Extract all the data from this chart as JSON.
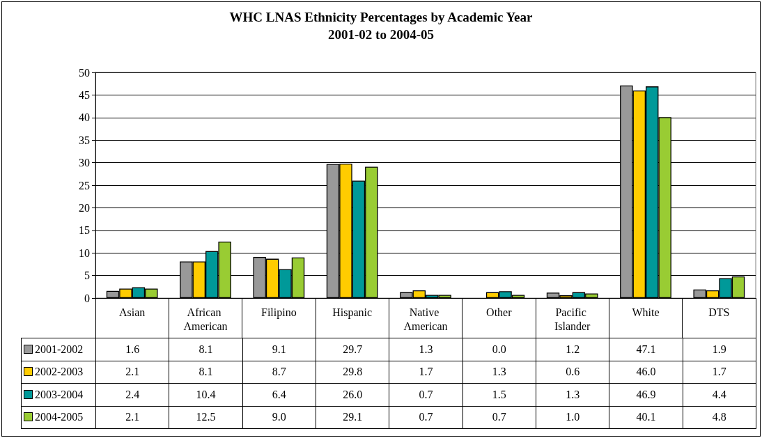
{
  "chart_data": {
    "type": "bar",
    "title": "WHC LNAS Ethnicity Percentages by Academic Year",
    "subtitle": "2001-02 to 2004-05",
    "categories": [
      "Asian",
      "African American",
      "Filipino",
      "Hispanic",
      "Native American",
      "Other",
      "Pacific Islander",
      "White",
      "DTS"
    ],
    "series": [
      {
        "name": "2001-2002",
        "color": "#999999",
        "values": [
          1.6,
          8.1,
          9.1,
          29.7,
          1.3,
          0.0,
          1.2,
          47.1,
          1.9
        ],
        "value_labels": [
          "1.6",
          "8.1",
          "9.1",
          "29.7",
          "1.3",
          "0.0",
          "1.2",
          "47.1",
          "1.9"
        ]
      },
      {
        "name": "2002-2003",
        "color": "#ffcc00",
        "values": [
          2.1,
          8.1,
          8.7,
          29.8,
          1.7,
          1.3,
          0.6,
          46.0,
          1.7
        ],
        "value_labels": [
          "2.1",
          "8.1",
          "8.7",
          "29.8",
          "1.7",
          "1.3",
          "0.6",
          "46.0",
          "1.7"
        ]
      },
      {
        "name": "2003-2004",
        "color": "#009999",
        "values": [
          2.4,
          10.4,
          6.4,
          26.0,
          0.7,
          1.5,
          1.3,
          46.9,
          4.4
        ],
        "value_labels": [
          "2.4",
          "10.4",
          "6.4",
          "26.0",
          "0.7",
          "1.5",
          "1.3",
          "46.9",
          "4.4"
        ]
      },
      {
        "name": "2004-2005",
        "color": "#99cc33",
        "values": [
          2.1,
          12.5,
          9.0,
          29.1,
          0.7,
          0.7,
          1.0,
          40.1,
          4.8
        ],
        "value_labels": [
          "2.1",
          "12.5",
          "9.0",
          "29.1",
          "0.7",
          "0.7",
          "1.0",
          "40.1",
          "4.8"
        ]
      }
    ],
    "ylim": [
      0,
      50
    ],
    "yticks": [
      0,
      5,
      10,
      15,
      20,
      25,
      30,
      35,
      40,
      45,
      50
    ],
    "grid": "y",
    "legend": "bottom"
  }
}
